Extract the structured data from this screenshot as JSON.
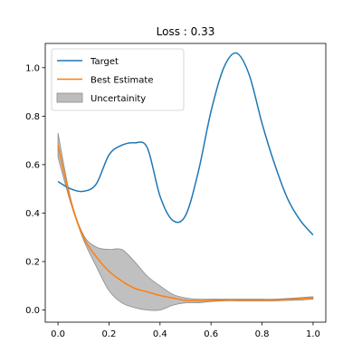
{
  "chart_data": {
    "type": "line",
    "title": "Loss : 0.33",
    "xlabel": "",
    "ylabel": "",
    "xlim": [
      -0.05,
      1.05
    ],
    "ylim": [
      -0.05,
      1.1
    ],
    "grid": false,
    "legend_placement": "top-left",
    "x_ticks": [
      0.0,
      0.2,
      0.4,
      0.6,
      0.8,
      1.0
    ],
    "x_tick_labels": [
      "0.0",
      "0.2",
      "0.4",
      "0.6",
      "0.8",
      "1.0"
    ],
    "y_ticks": [
      0.0,
      0.2,
      0.4,
      0.6,
      0.8,
      1.0
    ],
    "y_tick_labels": [
      "0.0",
      "0.2",
      "0.4",
      "0.6",
      "0.8",
      "1.0"
    ],
    "series": [
      {
        "name": "Target",
        "color": "#1f77b4",
        "x": [
          0.0,
          0.05,
          0.1,
          0.15,
          0.2,
          0.25,
          0.3,
          0.35,
          0.4,
          0.45,
          0.5,
          0.55,
          0.6,
          0.65,
          0.7,
          0.75,
          0.8,
          0.85,
          0.9,
          0.95,
          1.0
        ],
        "y": [
          0.53,
          0.5,
          0.49,
          0.52,
          0.64,
          0.68,
          0.69,
          0.67,
          0.47,
          0.37,
          0.39,
          0.57,
          0.82,
          1.0,
          1.06,
          0.97,
          0.77,
          0.6,
          0.46,
          0.37,
          0.31
        ]
      },
      {
        "name": "Best Estimate",
        "color": "#ff7f0e",
        "x": [
          0.0,
          0.05,
          0.1,
          0.15,
          0.2,
          0.25,
          0.3,
          0.35,
          0.4,
          0.45,
          0.5,
          0.55,
          0.6,
          0.65,
          0.7,
          0.75,
          0.8,
          0.85,
          0.9,
          0.95,
          1.0
        ],
        "y": [
          0.68,
          0.45,
          0.3,
          0.22,
          0.16,
          0.12,
          0.09,
          0.075,
          0.06,
          0.05,
          0.04,
          0.038,
          0.04,
          0.042,
          0.042,
          0.042,
          0.042,
          0.042,
          0.044,
          0.047,
          0.05
        ]
      }
    ],
    "bands": [
      {
        "name": "Uncertainity",
        "color": "#bdbdbd",
        "edge_color": "#8c8c8c",
        "x": [
          0.0,
          0.05,
          0.1,
          0.15,
          0.2,
          0.25,
          0.3,
          0.35,
          0.4,
          0.45,
          0.5,
          0.55,
          0.6,
          0.65,
          0.7,
          0.75,
          0.8,
          0.85,
          0.9,
          0.95,
          1.0
        ],
        "upper": [
          0.73,
          0.46,
          0.31,
          0.26,
          0.25,
          0.25,
          0.2,
          0.14,
          0.1,
          0.065,
          0.05,
          0.045,
          0.045,
          0.045,
          0.045,
          0.045,
          0.045,
          0.045,
          0.048,
          0.051,
          0.055
        ],
        "lower": [
          0.63,
          0.44,
          0.29,
          0.18,
          0.08,
          0.03,
          0.01,
          0.0,
          0.0,
          0.02,
          0.03,
          0.03,
          0.035,
          0.038,
          0.038,
          0.038,
          0.038,
          0.038,
          0.04,
          0.041,
          0.045
        ]
      }
    ],
    "legend": [
      "Target",
      "Best Estimate",
      "Uncertainity"
    ]
  }
}
